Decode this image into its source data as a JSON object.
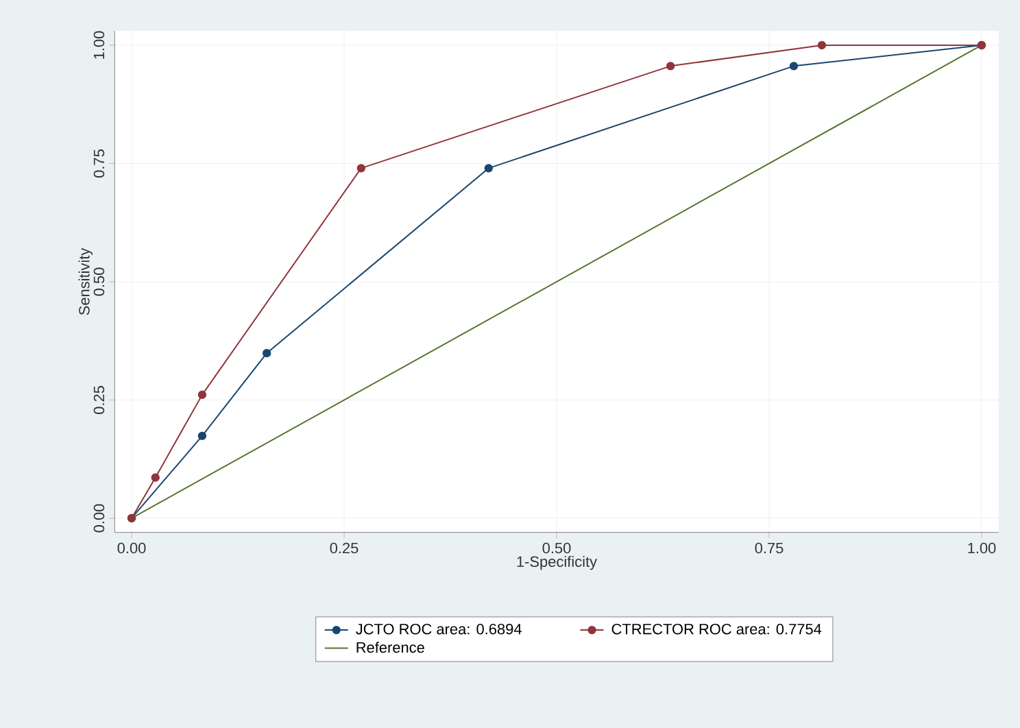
{
  "chart_data": {
    "type": "line",
    "xlabel": "1-Specificity",
    "ylabel": "Sensitivity",
    "xlim": [
      -0.02,
      1.02
    ],
    "ylim": [
      -0.03,
      1.03
    ],
    "xticks": [
      {
        "value": 0,
        "label": "0.00"
      },
      {
        "value": 0.25,
        "label": "0.25"
      },
      {
        "value": 0.5,
        "label": "0.50"
      },
      {
        "value": 0.75,
        "label": "0.75"
      },
      {
        "value": 1,
        "label": "1.00"
      }
    ],
    "yticks": [
      {
        "value": 0,
        "label": "0.00"
      },
      {
        "value": 0.25,
        "label": "0.25"
      },
      {
        "value": 0.5,
        "label": "0.50"
      },
      {
        "value": 0.75,
        "label": "0.75"
      },
      {
        "value": 1,
        "label": "1.00"
      }
    ],
    "grid": true,
    "legend": "bottom",
    "marker": "circle",
    "series": [
      {
        "name": "JCTO ROC area: 0.6894",
        "color": "#1a476f",
        "x": [
          0,
          0.083,
          0.159,
          0.42,
          0.779,
          1
        ],
        "values": [
          0,
          0.174,
          0.349,
          0.74,
          0.956,
          1
        ]
      },
      {
        "name": "CTRECTOR ROC area: 0.7754",
        "color": "#90353b",
        "x": [
          0,
          0.028,
          0.083,
          0.27,
          0.634,
          0.812,
          1
        ],
        "values": [
          0,
          0.086,
          0.261,
          0.74,
          0.956,
          1,
          1
        ]
      },
      {
        "name": "Reference",
        "color": "#55752f",
        "marker": "none",
        "x": [
          0,
          1
        ],
        "values": [
          0,
          1
        ]
      }
    ]
  }
}
